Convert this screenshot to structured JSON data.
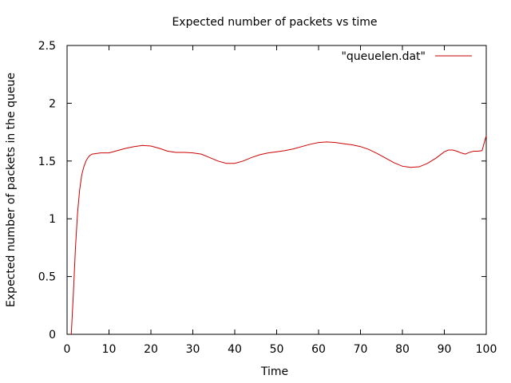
{
  "chart_data": {
    "type": "line",
    "title": "Expected number of packets vs time",
    "xlabel": "Time",
    "ylabel": "Expected number of packets in the queue",
    "xlim": [
      0,
      100
    ],
    "ylim": [
      0,
      2.5
    ],
    "xticks": [
      "0",
      "10",
      "20",
      "30",
      "40",
      "50",
      "60",
      "70",
      "80",
      "90",
      "100"
    ],
    "yticks": [
      "0",
      "0.5",
      "1",
      "1.5",
      "2",
      "2.5"
    ],
    "grid": false,
    "legend_position": "top-right",
    "series": [
      {
        "name": "\"queuelen.dat\"",
        "color": "#cc0000",
        "x": [
          1,
          1.5,
          2,
          2.5,
          3,
          3.5,
          4,
          4.5,
          5,
          5.5,
          6,
          7,
          8,
          9,
          10,
          12,
          14,
          16,
          18,
          20,
          22,
          24,
          26,
          28,
          30,
          32,
          34,
          36,
          38,
          40,
          42,
          44,
          46,
          48,
          50,
          52,
          54,
          56,
          58,
          60,
          62,
          64,
          66,
          68,
          70,
          72,
          74,
          76,
          78,
          80,
          82,
          84,
          86,
          88,
          90,
          91,
          92,
          93,
          94,
          95,
          96,
          97,
          98,
          99,
          100
        ],
        "y": [
          0,
          0.35,
          0.75,
          1.05,
          1.25,
          1.38,
          1.45,
          1.5,
          1.53,
          1.55,
          1.56,
          1.565,
          1.57,
          1.57,
          1.57,
          1.59,
          1.61,
          1.625,
          1.635,
          1.63,
          1.61,
          1.585,
          1.575,
          1.575,
          1.57,
          1.56,
          1.53,
          1.5,
          1.48,
          1.48,
          1.5,
          1.53,
          1.555,
          1.57,
          1.58,
          1.59,
          1.605,
          1.625,
          1.645,
          1.66,
          1.665,
          1.66,
          1.65,
          1.64,
          1.625,
          1.6,
          1.565,
          1.525,
          1.485,
          1.455,
          1.445,
          1.45,
          1.48,
          1.525,
          1.58,
          1.595,
          1.595,
          1.585,
          1.57,
          1.56,
          1.575,
          1.585,
          1.585,
          1.59,
          1.72
        ]
      }
    ]
  }
}
